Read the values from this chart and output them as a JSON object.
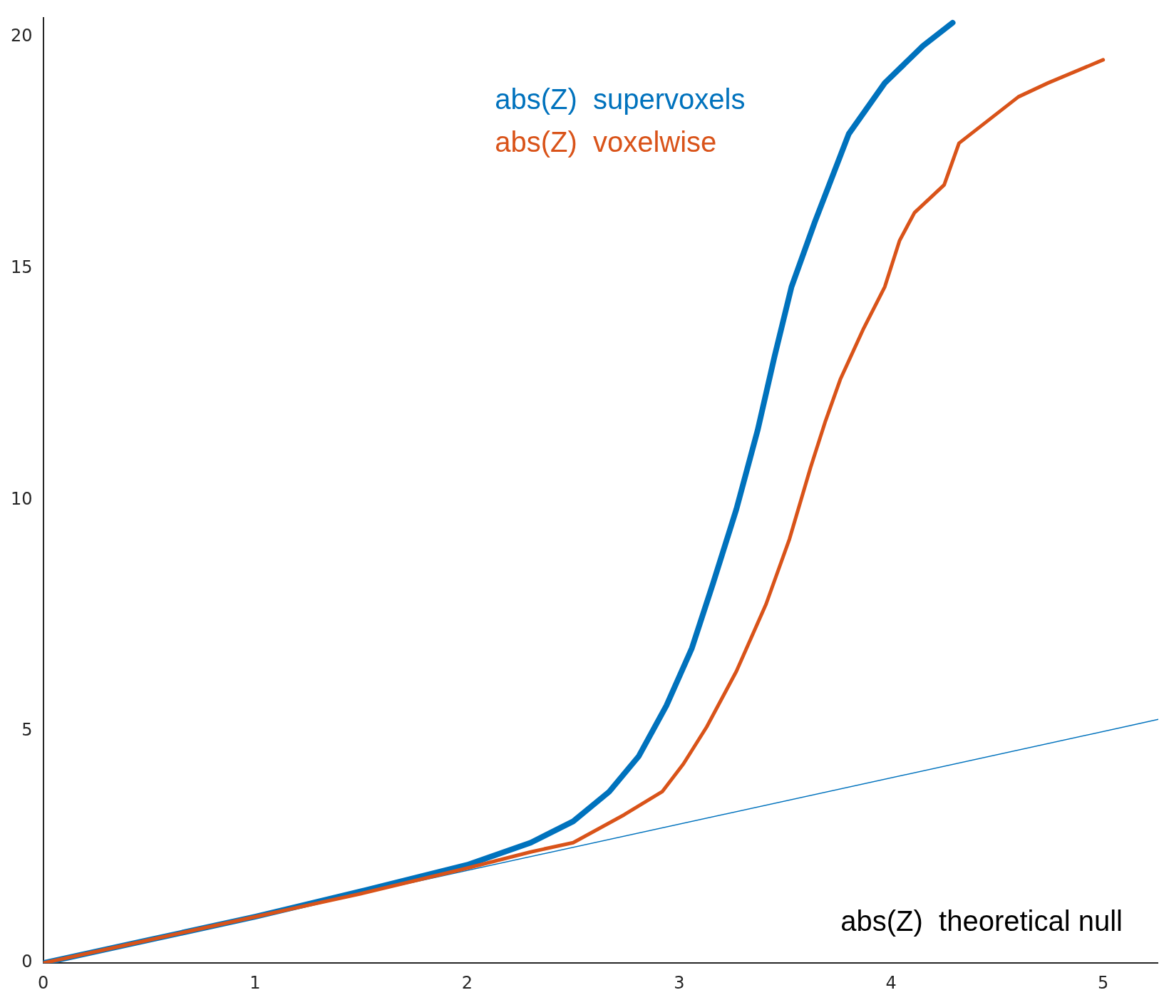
{
  "chart_data": {
    "type": "line",
    "xlim": [
      0,
      5.26
    ],
    "ylim": [
      0,
      20.4
    ],
    "xticks": [
      0,
      1,
      2,
      3,
      4,
      5
    ],
    "yticks": [
      0,
      5,
      10,
      15,
      20
    ],
    "grid": false,
    "marker": "none",
    "line_style": "solid",
    "annotations": [
      "abs(Z)  theoretical null"
    ],
    "series": [
      {
        "type": "line",
        "color": "#0072bd",
        "x": [
          0,
          5.26
        ],
        "values": [
          0,
          5.26
        ]
      },
      {
        "name": "abs(Z)  supervoxels",
        "color": "#0072bd",
        "x": [
          0,
          0.5,
          1,
          1.5,
          2,
          2.3,
          2.5,
          2.67,
          2.81,
          2.94,
          3.06,
          3.16,
          3.27,
          3.37,
          3.45,
          3.53,
          3.64,
          3.8,
          3.97,
          4.15,
          4.29
        ],
        "values": [
          0,
          0.5,
          1.0,
          1.55,
          2.12,
          2.6,
          3.06,
          3.7,
          4.47,
          5.56,
          6.8,
          8.2,
          9.8,
          11.5,
          13.1,
          14.6,
          16.0,
          17.9,
          19.0,
          19.8,
          20.3
        ]
      },
      {
        "name": "abs(Z)  voxelwise",
        "color": "#d95319",
        "x": [
          0,
          0.5,
          1,
          1.5,
          2,
          2.3,
          2.5,
          2.74,
          2.92,
          3.02,
          3.13,
          3.27,
          3.41,
          3.52,
          3.62,
          3.69,
          3.76,
          3.87,
          3.97,
          4.04,
          4.11,
          4.25,
          4.32,
          4.46,
          4.6,
          4.74,
          5.0
        ],
        "values": [
          0,
          0.5,
          1.0,
          1.5,
          2.05,
          2.4,
          2.6,
          3.2,
          3.7,
          4.3,
          5.1,
          6.3,
          7.75,
          9.15,
          10.7,
          11.7,
          12.6,
          13.7,
          14.6,
          15.6,
          16.2,
          16.8,
          17.7,
          18.2,
          18.7,
          19.0,
          19.5
        ]
      }
    ]
  }
}
